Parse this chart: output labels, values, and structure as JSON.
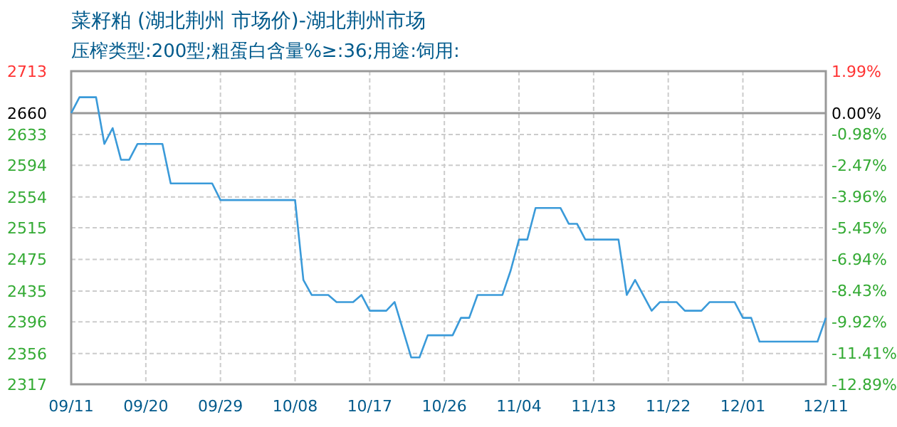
{
  "chart_data": {
    "type": "line",
    "title": "菜籽粕 (湖北荆州 市场价)-湖北荆州市场",
    "subtitle": "压榨类型:200型;粗蛋白含量%≥:36;用途:饲用:",
    "x": [
      "--09-11",
      "--09-12",
      "--09-14",
      "--09-15",
      "--09-16",
      "--09-17",
      "--09-18",
      "--09-19",
      "--09-22",
      "--09-23",
      "--09-28",
      "--09-29",
      "--10-08",
      "--10-09",
      "--10-10",
      "--10-12",
      "--10-13",
      "--10-15",
      "--10-16",
      "--10-17",
      "--10-19",
      "--10-20",
      "--10-22",
      "--10-23",
      "--10-24",
      "--10-27",
      "--10-28",
      "--10-29",
      "--10-30",
      "--11-02",
      "--11-03",
      "--11-04",
      "--11-05",
      "--11-06",
      "--11-09",
      "--11-10",
      "--11-11",
      "--11-12",
      "--11-16",
      "--11-17",
      "--11-18",
      "--11-20",
      "--11-21",
      "--11-23",
      "--11-24",
      "--11-26",
      "--11-27",
      "--11-30",
      "--12-01",
      "--12-02",
      "--12-03",
      "--12-10",
      "--12-11"
    ],
    "series": [
      {
        "color": "#3a9ad9",
        "values": [
          2660,
          2680,
          2680,
          2621,
          2641,
          2601,
          2601,
          2621,
          2621,
          2571,
          2571,
          2550,
          2550,
          2449,
          2430,
          2430,
          2421,
          2421,
          2430,
          2410,
          2410,
          2421,
          2351,
          2351,
          2379,
          2379,
          2401,
          2401,
          2430,
          2430,
          2461,
          2500,
          2500,
          2540,
          2540,
          2520,
          2520,
          2500,
          2500,
          2430,
          2449,
          2410,
          2421,
          2421,
          2410,
          2410,
          2421,
          2421,
          2401,
          2401,
          2371,
          2371,
          2401
        ]
      }
    ],
    "xlim": [
      "--09-11",
      "--12-11"
    ],
    "xticks": [
      {
        "value": "--09-11",
        "label": "09/11"
      },
      {
        "value": "--09-20",
        "label": "09/20"
      },
      {
        "value": "--09-29",
        "label": "09/29"
      },
      {
        "value": "--10-08",
        "label": "10/08"
      },
      {
        "value": "--10-17",
        "label": "10/17"
      },
      {
        "value": "--10-26",
        "label": "10/26"
      },
      {
        "value": "--11-04",
        "label": "11/04"
      },
      {
        "value": "--11-13",
        "label": "11/13"
      },
      {
        "value": "--11-22",
        "label": "11/22"
      },
      {
        "value": "--12-01",
        "label": "12/01"
      },
      {
        "value": "--12-11",
        "label": "12/11"
      }
    ],
    "ylim": [
      2317,
      2713
    ],
    "yticks": [
      2317,
      2356,
      2396,
      2435,
      2475,
      2515,
      2554,
      2594,
      2633,
      2660,
      2713
    ],
    "y2lim": [
      -12.89,
      1.99
    ],
    "y2ticks": [
      {
        "value": -12.89,
        "label": "-12.89%"
      },
      {
        "value": -11.41,
        "label": "-11.41%"
      },
      {
        "value": -9.92,
        "label": "-9.92%"
      },
      {
        "value": -8.43,
        "label": "-8.43%"
      },
      {
        "value": -6.94,
        "label": "-6.94%"
      },
      {
        "value": -5.45,
        "label": "-5.45%"
      },
      {
        "value": -3.96,
        "label": "-3.96%"
      },
      {
        "value": -2.47,
        "label": "-2.47%"
      },
      {
        "value": -0.98,
        "label": "-0.98%"
      },
      {
        "value": 0,
        "label": "0.00%"
      },
      {
        "value": 1.99,
        "label": "1.99%"
      }
    ],
    "ref_lines": [
      {
        "axis": "y",
        "value": 2660,
        "color": "#999999"
      }
    ],
    "grid": true
  }
}
